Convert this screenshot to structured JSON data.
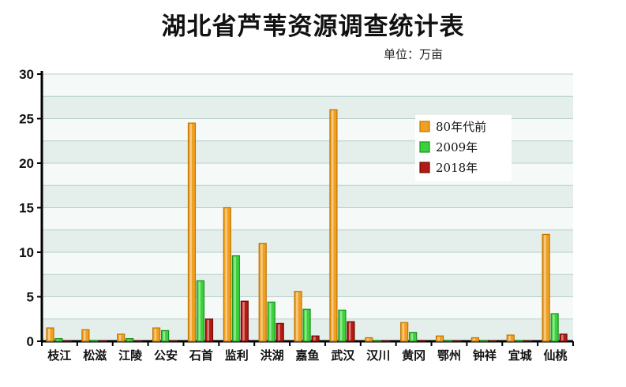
{
  "chart_data": {
    "type": "bar",
    "title": "湖北省芦苇资源调查统计表",
    "unit": "单位：万亩",
    "ylim": [
      0,
      30
    ],
    "yticks": [
      0,
      5,
      10,
      15,
      20,
      25,
      30
    ],
    "grid": true,
    "legend_position": "top-right",
    "categories": [
      "枝江",
      "松滋",
      "江陵",
      "公安",
      "石首",
      "监利",
      "洪湖",
      "嘉鱼",
      "武汉",
      "汉川",
      "黄冈",
      "鄂州",
      "钟祥",
      "宜城",
      "仙桃"
    ],
    "series": [
      {
        "name": "80年代前",
        "color": "#f0a020",
        "values": [
          1.5,
          1.3,
          0.8,
          1.5,
          24.5,
          15.0,
          11.0,
          5.6,
          26.0,
          0.4,
          2.1,
          0.6,
          0.4,
          0.7,
          12.0
        ]
      },
      {
        "name": "2009年",
        "color": "#3cd23c",
        "values": [
          0.3,
          0.1,
          0.3,
          1.2,
          6.8,
          9.6,
          4.4,
          3.6,
          3.5,
          0.1,
          1.0,
          0.1,
          0.1,
          0.1,
          3.1
        ]
      },
      {
        "name": "2018年",
        "color": "#b51a12",
        "values": [
          0.05,
          0.05,
          0.05,
          0.05,
          2.5,
          4.5,
          2.0,
          0.6,
          2.2,
          0.05,
          0.1,
          0.05,
          0.05,
          0.05,
          0.8
        ]
      }
    ]
  }
}
